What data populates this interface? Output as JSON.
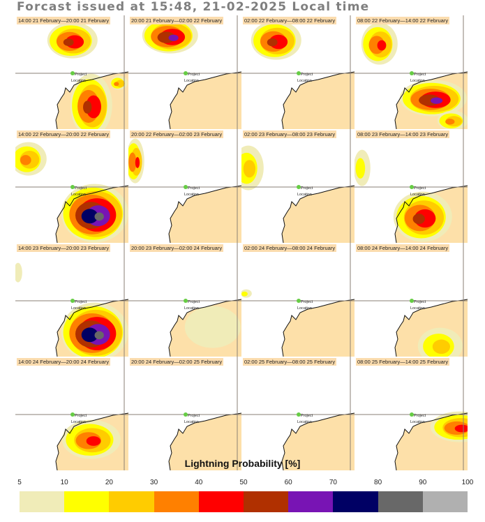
{
  "title": "Forcast issued at 15:48, 21-02-2025 Local time",
  "panels": [
    {
      "label": "14:00 21 February—20:00 21 February"
    },
    {
      "label": "20:00 21 February—02:00 22 February"
    },
    {
      "label": "02:00 22 February—08:00 22 February"
    },
    {
      "label": "08:00 22 February—14:00 22 February"
    },
    {
      "label": "14:00 22 February—20:00 22 February"
    },
    {
      "label": "20:00 22 February—02:00 23 February"
    },
    {
      "label": "02:00 23 February—08:00 23 February"
    },
    {
      "label": "08:00 23 February—14:00 23 February"
    },
    {
      "label": "14:00 23 February—20:00 23 February"
    },
    {
      "label": "20:00 23 February—02:00 24 February"
    },
    {
      "label": "02:00 24 February—08:00 24 February"
    },
    {
      "label": "08:00 24 February—14:00 24 February"
    },
    {
      "label": "14:00 24 February—20:00 24 February"
    },
    {
      "label": "20:00 24 February—02:00 25 February"
    },
    {
      "label": "02:00 25 February—08:00 25 February"
    },
    {
      "label": "08:00 25 February—14:00 25 February"
    }
  ],
  "marker": {
    "line1": "Project",
    "line2": "Location"
  },
  "colorbar": {
    "title": "Lightning Probability [%]",
    "ticks": [
      "5",
      "10",
      "20",
      "30",
      "40",
      "50",
      "60",
      "70",
      "80",
      "90",
      "100"
    ],
    "colors": [
      "#f0ecb8",
      "#ffff00",
      "#ffcc00",
      "#ff8000",
      "#ff0000",
      "#b03000",
      "#7814b4",
      "#000064",
      "#686868",
      "#b0b0b0"
    ]
  },
  "colors": {
    "land": "#fde0a9",
    "marker": "#66cc44"
  }
}
